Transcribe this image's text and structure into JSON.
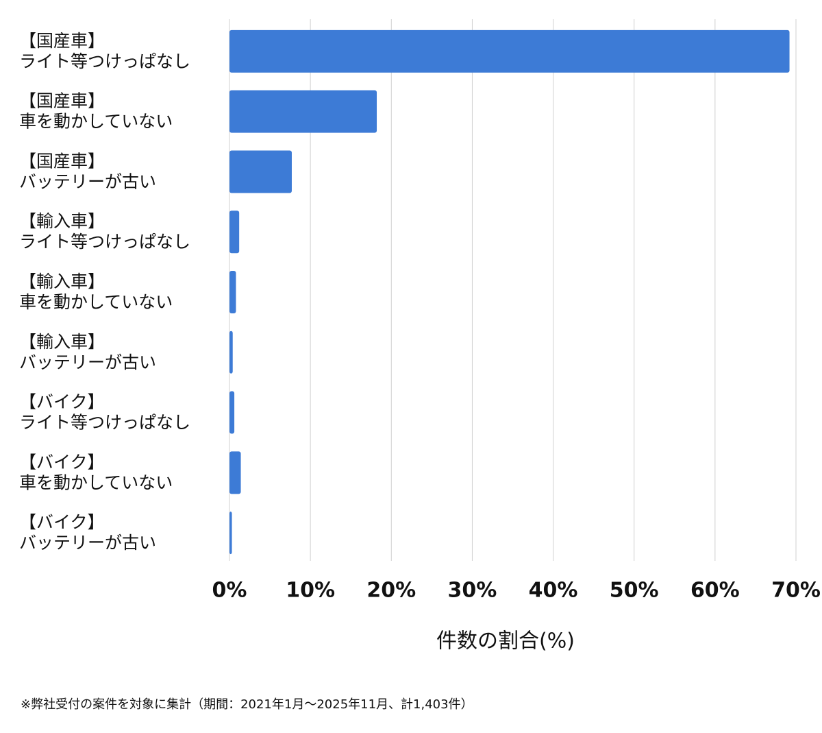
{
  "chart_data": {
    "type": "bar",
    "orientation": "horizontal",
    "categories": [
      [
        "【国産車】",
        "ライト等つけっぱなし"
      ],
      [
        "【国産車】",
        "車を動かしていない"
      ],
      [
        "【国産車】",
        "バッテリーが古い"
      ],
      [
        "【輸入車】",
        "ライト等つけっぱなし"
      ],
      [
        "【輸入車】",
        "車を動かしていない"
      ],
      [
        "【輸入車】",
        "バッテリーが古い"
      ],
      [
        "【バイク】",
        "ライト等つけっぱなし"
      ],
      [
        "【バイク】",
        "車を動かしていない"
      ],
      [
        "【バイク】",
        "バッテリーが古い"
      ]
    ],
    "values": [
      69.2,
      18.2,
      7.7,
      1.2,
      0.8,
      0.4,
      0.6,
      1.4,
      0.3
    ],
    "color": "#3d7bd6",
    "xlim": [
      0,
      70
    ],
    "xticks": [
      {
        "value": 0,
        "label": "0%"
      },
      {
        "value": 10,
        "label": "10%"
      },
      {
        "value": 20,
        "label": "20%"
      },
      {
        "value": 30,
        "label": "30%"
      },
      {
        "value": 40,
        "label": "40%"
      },
      {
        "value": 50,
        "label": "50%"
      },
      {
        "value": 60,
        "label": "60%"
      },
      {
        "value": 70,
        "label": "70%"
      }
    ],
    "grid": true,
    "xlabel": "件数の割合(%)",
    "footnote": "※弊社受付の案件を対象に集計（期間：2021年1月〜2025年11月、計1,403件）"
  }
}
